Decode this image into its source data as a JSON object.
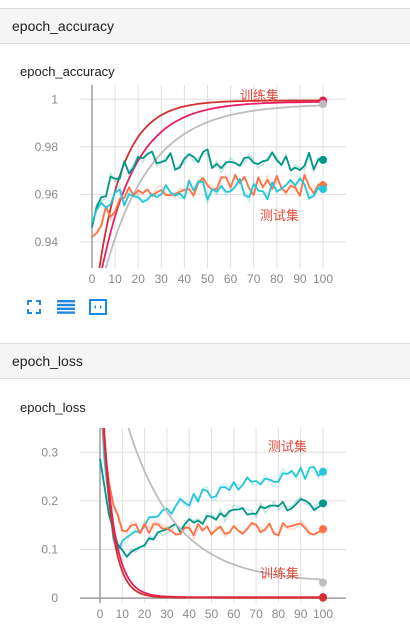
{
  "sections": {
    "accuracy_header": "epoch_accuracy",
    "loss_header": "epoch_loss"
  },
  "cards": {
    "accuracy_title": "epoch_accuracy",
    "loss_title": "epoch_loss"
  },
  "toolbar": {
    "icons": [
      "expand-icon",
      "data-table-icon",
      "fit-domain-icon"
    ],
    "color": "#1e88e5"
  },
  "chart_data": [
    {
      "type": "line",
      "title": "epoch_accuracy",
      "xlabel": "",
      "ylabel": "",
      "xlim": [
        0,
        100
      ],
      "ylim": [
        0.929,
        1.006
      ],
      "x_ticks": [
        0,
        10,
        20,
        30,
        40,
        50,
        60,
        70,
        80,
        90,
        100
      ],
      "y_ticks": [
        0.94,
        0.96,
        0.98,
        1
      ],
      "y_tick_labels": [
        "0.94",
        "0.96",
        "0.98",
        "1"
      ],
      "grid": true,
      "annotations": [
        {
          "text": "训练集",
          "near_series": "train"
        },
        {
          "text": "测试集",
          "near_series": "test"
        }
      ],
      "series": [
        {
          "color": "#d32f2f",
          "style": "smooth",
          "final": 0.9995
        },
        {
          "color": "#e91e63",
          "style": "smooth",
          "final": 0.999
        },
        {
          "color": "#bdbdbd",
          "style": "smooth",
          "final": 0.998
        },
        {
          "color": "#009688",
          "style": "noisy",
          "final": 0.9745
        },
        {
          "color": "#ff7043",
          "style": "noisy",
          "final": 0.9638
        },
        {
          "color": "#26c6da",
          "style": "noisy",
          "final": 0.9622
        }
      ]
    },
    {
      "type": "line",
      "title": "epoch_loss",
      "xlabel": "",
      "ylabel": "",
      "xlim": [
        0,
        100
      ],
      "ylim": [
        -0.01,
        0.35
      ],
      "x_ticks": [
        0,
        10,
        20,
        30,
        40,
        50,
        60,
        70,
        80,
        90,
        100
      ],
      "y_ticks": [
        0,
        0.1,
        0.2,
        0.3
      ],
      "y_tick_labels": [
        "0",
        "0.1",
        "0.2",
        "0.3"
      ],
      "grid": true,
      "annotations": [
        {
          "text": "测试集",
          "near_series": "test"
        },
        {
          "text": "训练集",
          "near_series": "train"
        }
      ],
      "series": [
        {
          "color": "#26c6da",
          "style": "noisy",
          "final": 0.26
        },
        {
          "color": "#009688",
          "style": "noisy",
          "final": 0.195
        },
        {
          "color": "#ff7043",
          "style": "noisy",
          "final": 0.142
        },
        {
          "color": "#bdbdbd",
          "style": "smooth",
          "final": 0.032
        },
        {
          "color": "#e91e63",
          "style": "smooth",
          "final": 0.002
        },
        {
          "color": "#d32f2f",
          "style": "smooth",
          "final": 0.001
        }
      ]
    }
  ]
}
